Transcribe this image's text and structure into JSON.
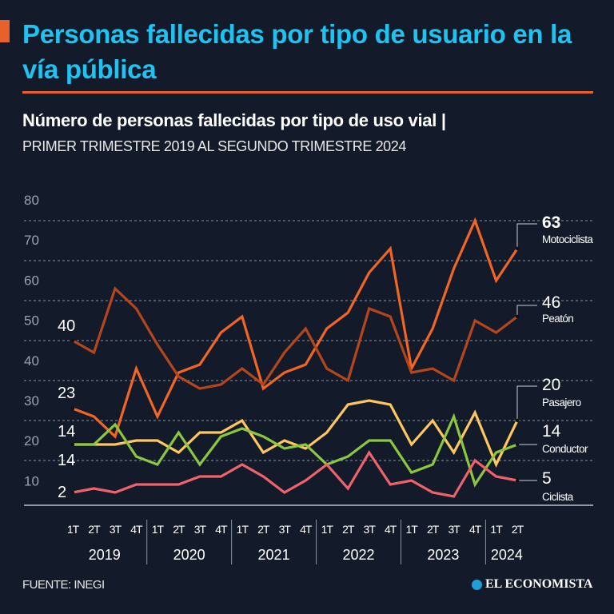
{
  "header": {
    "title": "Personas fallecidas por tipo de usuario en la vía pública"
  },
  "chart_data": {
    "type": "line",
    "title": "Número de personas fallecidas por tipo de uso vial |",
    "subtitle": "PRIMER TRIMESTRE 2019 AL SEGUNDO TRIMESTRE 2024",
    "y_tick_labels": [
      "80",
      "70",
      "60",
      "50",
      "40",
      "30",
      "20",
      "10"
    ],
    "ylim": [
      0,
      70
    ],
    "grid": true,
    "quarters": [
      "1T",
      "2T",
      "3T",
      "4T",
      "1T",
      "2T",
      "3T",
      "4T",
      "1T",
      "2T",
      "3T",
      "4T",
      "1T",
      "2T",
      "3T",
      "4T",
      "1T",
      "2T",
      "3T",
      "4T",
      "1T",
      "2T"
    ],
    "years": [
      "2019",
      "2020",
      "2021",
      "2022",
      "2023",
      "2024"
    ],
    "series": [
      {
        "name": "Motociclista",
        "color": "#f26522",
        "start_label": "23",
        "end_label": "63",
        "values": [
          23,
          21,
          16,
          33,
          21,
          32,
          34,
          42,
          46,
          28,
          32,
          34,
          43,
          47,
          57,
          63,
          33,
          43,
          58,
          70,
          55,
          63
        ]
      },
      {
        "name": "Peatón",
        "color": "#b5461c",
        "start_label": "40",
        "end_label": "46",
        "values": [
          40,
          37,
          53,
          48,
          39,
          31,
          28,
          29,
          33,
          29,
          37,
          43,
          33,
          30,
          48,
          46,
          32,
          33,
          30,
          45,
          42,
          46
        ]
      },
      {
        "name": "Pasajero",
        "color": "#fdc75d",
        "start_label": "14",
        "end_label": "20",
        "values": [
          14,
          14,
          14,
          15,
          15,
          12,
          17,
          17,
          20,
          12,
          15,
          13,
          17,
          24,
          25,
          24,
          14,
          20,
          12,
          22,
          9,
          20
        ]
      },
      {
        "name": "Conductor",
        "color": "#8cc63f",
        "start_label": "14",
        "end_label": "14",
        "values": [
          14,
          14,
          19,
          11,
          9,
          17,
          9,
          16,
          18,
          16,
          13,
          14,
          9,
          11,
          15,
          15,
          7,
          9,
          21,
          4,
          12,
          14
        ]
      },
      {
        "name": "Ciclista",
        "color": "#f0626b",
        "start_label": "2",
        "end_label": "5",
        "values": [
          2,
          3,
          2,
          4,
          4,
          4,
          6,
          6,
          9,
          6,
          2,
          5,
          9,
          3,
          12,
          4,
          5,
          2,
          1,
          10,
          6,
          5
        ]
      }
    ]
  },
  "footer": {
    "source": "FUENTE: INEGI",
    "brand": "EL ECONOMISTA"
  }
}
